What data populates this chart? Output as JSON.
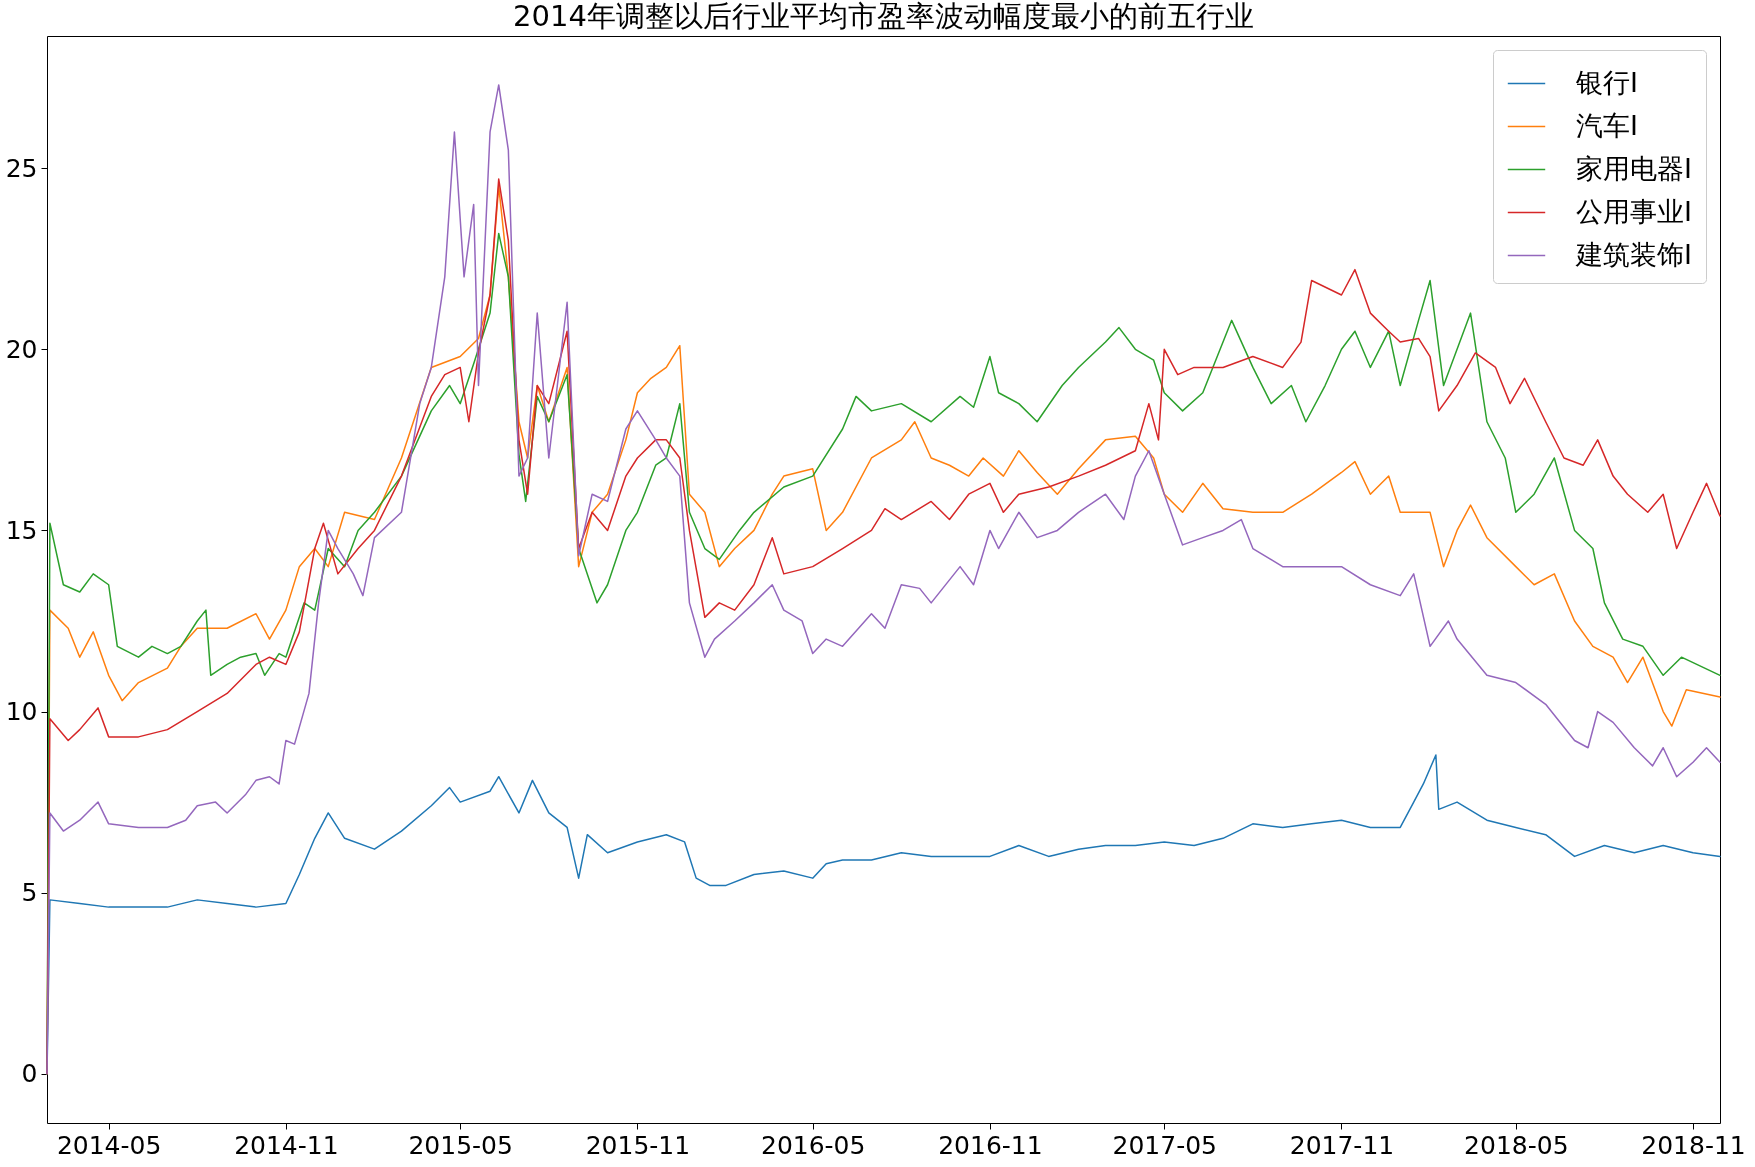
{
  "chart_data": {
    "type": "line",
    "title": "2014年调整以后行业平均市盈率波动幅度最小的前五行业",
    "xlim": [
      "2014-02-26",
      "2018-11-29"
    ],
    "xticks": [
      "2014-05",
      "2014-11",
      "2015-05",
      "2015-11",
      "2016-05",
      "2016-11",
      "2017-05",
      "2017-11",
      "2018-05",
      "2018-11"
    ],
    "ylim": [
      -1.36,
      28.65
    ],
    "yticks": [
      0,
      5,
      10,
      15,
      20,
      25
    ],
    "grid": false,
    "legend": "top right",
    "line_style": "solid",
    "marker": "none",
    "series": [
      {
        "name": "银行I",
        "color": "#1f77b4",
        "x": [
          "2014-02-26",
          "2014-03-01",
          "2014-04-01",
          "2014-05-01",
          "2014-06-01",
          "2014-07-01",
          "2014-08-01",
          "2014-09-01",
          "2014-10-01",
          "2014-11-01",
          "2014-11-15",
          "2014-12-01",
          "2014-12-15",
          "2015-01-01",
          "2015-02-01",
          "2015-03-01",
          "2015-04-01",
          "2015-04-20",
          "2015-05-01",
          "2015-06-01",
          "2015-06-10",
          "2015-07-01",
          "2015-07-15",
          "2015-08-01",
          "2015-08-20",
          "2015-09-01",
          "2015-09-10",
          "2015-10-01",
          "2015-11-01",
          "2015-12-01",
          "2015-12-20",
          "2016-01-01",
          "2016-01-15",
          "2016-02-01",
          "2016-03-01",
          "2016-04-01",
          "2016-05-01",
          "2016-05-15",
          "2016-06-01",
          "2016-07-01",
          "2016-08-01",
          "2016-09-01",
          "2016-10-01",
          "2016-11-01",
          "2016-12-01",
          "2017-01-01",
          "2017-02-01",
          "2017-03-01",
          "2017-04-01",
          "2017-05-01",
          "2017-06-01",
          "2017-07-01",
          "2017-08-01",
          "2017-09-01",
          "2017-10-01",
          "2017-11-01",
          "2017-12-01",
          "2018-01-01",
          "2018-01-15",
          "2018-01-25",
          "2018-02-07",
          "2018-02-10",
          "2018-03-01",
          "2018-04-01",
          "2018-05-01",
          "2018-06-01",
          "2018-07-01",
          "2018-08-01",
          "2018-09-01",
          "2018-10-01",
          "2018-11-01",
          "2018-11-29"
        ],
        "values": [
          0,
          4.8,
          4.7,
          4.6,
          4.6,
          4.6,
          4.8,
          4.7,
          4.6,
          4.7,
          5.5,
          6.5,
          7.2,
          6.5,
          6.2,
          6.7,
          7.4,
          7.9,
          7.5,
          7.8,
          8.2,
          7.2,
          8.1,
          7.2,
          6.8,
          5.4,
          6.6,
          6.1,
          6.4,
          6.6,
          6.4,
          5.4,
          5.2,
          5.2,
          5.5,
          5.6,
          5.4,
          5.8,
          5.9,
          5.9,
          6.1,
          6.0,
          6.0,
          6.0,
          6.3,
          6.0,
          6.2,
          6.3,
          6.3,
          6.4,
          6.3,
          6.5,
          6.9,
          6.8,
          6.9,
          7.0,
          6.8,
          6.8,
          7.5,
          8.0,
          8.8,
          7.3,
          7.5,
          7.0,
          6.8,
          6.6,
          6.0,
          6.3,
          6.1,
          6.3,
          6.1,
          6.0
        ]
      },
      {
        "name": "汽车I",
        "color": "#ff7f0e",
        "x": [
          "2014-02-26",
          "2014-03-01",
          "2014-03-20",
          "2014-04-01",
          "2014-04-15",
          "2014-05-01",
          "2014-05-15",
          "2014-06-01",
          "2014-07-01",
          "2014-07-15",
          "2014-08-01",
          "2014-09-01",
          "2014-10-01",
          "2014-10-15",
          "2014-11-01",
          "2014-11-15",
          "2014-12-01",
          "2014-12-15",
          "2015-01-01",
          "2015-02-01",
          "2015-03-01",
          "2015-04-01",
          "2015-05-01",
          "2015-05-20",
          "2015-06-01",
          "2015-06-10",
          "2015-06-20",
          "2015-07-01",
          "2015-07-10",
          "2015-07-20",
          "2015-08-01",
          "2015-08-20",
          "2015-09-01",
          "2015-09-15",
          "2015-10-01",
          "2015-10-20",
          "2015-11-01",
          "2015-11-15",
          "2015-12-01",
          "2015-12-15",
          "2015-12-25",
          "2016-01-10",
          "2016-01-25",
          "2016-02-10",
          "2016-03-01",
          "2016-03-20",
          "2016-04-01",
          "2016-05-01",
          "2016-05-15",
          "2016-06-01",
          "2016-07-01",
          "2016-08-01",
          "2016-08-15",
          "2016-09-01",
          "2016-09-20",
          "2016-10-10",
          "2016-10-25",
          "2016-11-15",
          "2016-12-01",
          "2016-12-20",
          "2017-01-10",
          "2017-02-01",
          "2017-03-01",
          "2017-04-01",
          "2017-04-20",
          "2017-05-01",
          "2017-05-20",
          "2017-06-10",
          "2017-07-01",
          "2017-08-01",
          "2017-09-01",
          "2017-10-01",
          "2017-11-01",
          "2017-11-15",
          "2017-12-01",
          "2017-12-20",
          "2018-01-01",
          "2018-02-01",
          "2018-02-15",
          "2018-03-01",
          "2018-03-15",
          "2018-04-01",
          "2018-05-01",
          "2018-05-20",
          "2018-06-10",
          "2018-07-01",
          "2018-07-20",
          "2018-08-10",
          "2018-08-25",
          "2018-09-10",
          "2018-10-01",
          "2018-10-10",
          "2018-10-25",
          "2018-11-29"
        ],
        "values": [
          0,
          12.8,
          12.3,
          11.5,
          12.2,
          11.0,
          10.3,
          10.8,
          11.2,
          11.8,
          12.3,
          12.3,
          12.7,
          12.0,
          12.8,
          14.0,
          14.5,
          14.0,
          15.5,
          15.3,
          17.0,
          19.5,
          19.8,
          20.3,
          21.5,
          24.5,
          22.0,
          18.0,
          17.0,
          19.0,
          18.0,
          19.5,
          14.0,
          15.5,
          16.0,
          17.5,
          18.8,
          19.2,
          19.5,
          20.1,
          16.0,
          15.5,
          14.0,
          14.5,
          15.0,
          16.0,
          16.5,
          16.7,
          15.0,
          15.5,
          17.0,
          17.5,
          18.0,
          17.0,
          16.8,
          16.5,
          17.0,
          16.5,
          17.2,
          16.6,
          16.0,
          16.7,
          17.5,
          17.6,
          17.0,
          16.0,
          15.5,
          16.3,
          15.6,
          15.5,
          15.5,
          16.0,
          16.6,
          16.9,
          16.0,
          16.5,
          15.5,
          15.5,
          14.0,
          15.0,
          15.7,
          14.8,
          14.0,
          13.5,
          13.8,
          12.5,
          11.8,
          11.5,
          10.8,
          11.5,
          10.0,
          9.6,
          10.6,
          10.4
        ]
      },
      {
        "name": "家用电器I",
        "color": "#2ca02c",
        "x": [
          "2014-02-26",
          "2014-03-01",
          "2014-03-15",
          "2014-04-01",
          "2014-04-15",
          "2014-05-01",
          "2014-05-10",
          "2014-06-01",
          "2014-06-15",
          "2014-07-01",
          "2014-07-15",
          "2014-08-01",
          "2014-08-10",
          "2014-08-15",
          "2014-09-01",
          "2014-09-15",
          "2014-10-01",
          "2014-10-10",
          "2014-10-25",
          "2014-11-01",
          "2014-11-20",
          "2014-12-01",
          "2014-12-15",
          "2015-01-01",
          "2015-01-15",
          "2015-02-01",
          "2015-03-01",
          "2015-04-01",
          "2015-04-20",
          "2015-05-01",
          "2015-05-15",
          "2015-06-01",
          "2015-06-10",
          "2015-06-20",
          "2015-07-01",
          "2015-07-08",
          "2015-07-20",
          "2015-08-01",
          "2015-08-20",
          "2015-09-01",
          "2015-09-20",
          "2015-10-01",
          "2015-10-20",
          "2015-11-01",
          "2015-11-20",
          "2015-12-01",
          "2015-12-15",
          "2015-12-25",
          "2016-01-10",
          "2016-01-25",
          "2016-02-15",
          "2016-03-01",
          "2016-04-01",
          "2016-05-01",
          "2016-06-01",
          "2016-06-15",
          "2016-07-01",
          "2016-08-01",
          "2016-09-01",
          "2016-10-01",
          "2016-10-15",
          "2016-11-01",
          "2016-11-10",
          "2016-12-01",
          "2016-12-20",
          "2017-01-15",
          "2017-02-01",
          "2017-03-01",
          "2017-03-15",
          "2017-04-01",
          "2017-04-20",
          "2017-05-01",
          "2017-05-20",
          "2017-06-10",
          "2017-06-25",
          "2017-07-10",
          "2017-08-01",
          "2017-08-20",
          "2017-09-10",
          "2017-09-25",
          "2017-10-15",
          "2017-11-01",
          "2017-11-15",
          "2017-12-01",
          "2017-12-20",
          "2018-01-01",
          "2018-01-20",
          "2018-02-01",
          "2018-02-15",
          "2018-03-01",
          "2018-03-15",
          "2018-04-01",
          "2018-04-20",
          "2018-05-01",
          "2018-05-20",
          "2018-06-10",
          "2018-07-01",
          "2018-07-20",
          "2018-08-01",
          "2018-08-20",
          "2018-09-10",
          "2018-10-01",
          "2018-10-20",
          "2018-11-29"
        ],
        "values": [
          0,
          15.2,
          13.5,
          13.3,
          13.8,
          13.5,
          11.8,
          11.5,
          11.8,
          11.6,
          11.8,
          12.5,
          12.8,
          11.0,
          11.3,
          11.5,
          11.6,
          11.0,
          11.6,
          11.5,
          13.0,
          12.8,
          14.5,
          14.0,
          15.0,
          15.5,
          16.5,
          18.3,
          19.0,
          18.5,
          19.6,
          21.0,
          23.2,
          22.0,
          17.1,
          15.8,
          18.7,
          18.0,
          19.3,
          14.5,
          13.0,
          13.5,
          15.0,
          15.5,
          16.8,
          17.0,
          18.5,
          15.5,
          14.5,
          14.2,
          15.0,
          15.5,
          16.2,
          16.5,
          17.8,
          18.7,
          18.3,
          18.5,
          18.0,
          18.7,
          18.4,
          19.8,
          18.8,
          18.5,
          18.0,
          19.0,
          19.5,
          20.2,
          20.6,
          20.0,
          19.7,
          18.8,
          18.3,
          18.8,
          19.8,
          20.8,
          19.5,
          18.5,
          19.0,
          18.0,
          19.0,
          20.0,
          20.5,
          19.5,
          20.5,
          19.0,
          20.8,
          21.9,
          19.0,
          20.0,
          21.0,
          18.0,
          17.0,
          15.5,
          16.0,
          17.0,
          15.0,
          14.5,
          13.0,
          12.0,
          11.8,
          11.0,
          11.5,
          11.0
        ]
      },
      {
        "name": "公用事业I",
        "color": "#d62728",
        "x": [
          "2014-02-26",
          "2014-03-01",
          "2014-03-20",
          "2014-04-01",
          "2014-04-20",
          "2014-05-01",
          "2014-06-01",
          "2014-07-01",
          "2014-08-01",
          "2014-09-01",
          "2014-10-01",
          "2014-10-15",
          "2014-11-01",
          "2014-11-15",
          "2014-12-01",
          "2014-12-10",
          "2014-12-25",
          "2015-01-15",
          "2015-02-01",
          "2015-03-01",
          "2015-04-01",
          "2015-04-15",
          "2015-05-01",
          "2015-05-10",
          "2015-05-20",
          "2015-06-01",
          "2015-06-10",
          "2015-06-20",
          "2015-07-01",
          "2015-07-10",
          "2015-07-20",
          "2015-08-01",
          "2015-08-20",
          "2015-09-01",
          "2015-09-15",
          "2015-10-01",
          "2015-10-20",
          "2015-11-01",
          "2015-11-20",
          "2015-12-01",
          "2015-12-15",
          "2015-12-25",
          "2016-01-10",
          "2016-01-25",
          "2016-02-10",
          "2016-03-01",
          "2016-03-20",
          "2016-04-01",
          "2016-05-01",
          "2016-06-01",
          "2016-07-01",
          "2016-07-15",
          "2016-08-01",
          "2016-09-01",
          "2016-09-20",
          "2016-10-10",
          "2016-11-01",
          "2016-11-15",
          "2016-12-01",
          "2017-01-01",
          "2017-02-01",
          "2017-03-01",
          "2017-04-01",
          "2017-04-15",
          "2017-04-25",
          "2017-05-01",
          "2017-05-15",
          "2017-06-01",
          "2017-07-01",
          "2017-08-01",
          "2017-09-01",
          "2017-09-20",
          "2017-10-01",
          "2017-11-01",
          "2017-11-15",
          "2017-12-01",
          "2017-12-20",
          "2018-01-01",
          "2018-01-20",
          "2018-02-01",
          "2018-02-10",
          "2018-03-01",
          "2018-03-20",
          "2018-04-10",
          "2018-04-25",
          "2018-05-10",
          "2018-06-01",
          "2018-06-20",
          "2018-07-10",
          "2018-07-25",
          "2018-08-10",
          "2018-08-25",
          "2018-09-15",
          "2018-10-01",
          "2018-10-15",
          "2018-11-01",
          "2018-11-15",
          "2018-11-29"
        ],
        "values": [
          0,
          9.8,
          9.2,
          9.5,
          10.1,
          9.3,
          9.3,
          9.5,
          10.0,
          10.5,
          11.3,
          11.5,
          11.3,
          12.2,
          14.5,
          15.2,
          13.8,
          14.5,
          15.0,
          16.5,
          18.7,
          19.3,
          19.5,
          18.0,
          19.9,
          21.5,
          24.7,
          23.0,
          17.5,
          16.0,
          19.0,
          18.5,
          20.5,
          14.5,
          15.5,
          15.0,
          16.5,
          17.0,
          17.5,
          17.5,
          17.0,
          15.0,
          12.6,
          13.0,
          12.8,
          13.5,
          14.8,
          13.8,
          14.0,
          14.5,
          15.0,
          15.6,
          15.3,
          15.8,
          15.3,
          16.0,
          16.3,
          15.5,
          16.0,
          16.2,
          16.5,
          16.8,
          17.2,
          18.5,
          17.5,
          20.0,
          19.3,
          19.5,
          19.5,
          19.8,
          19.5,
          20.2,
          21.9,
          21.5,
          22.2,
          21.0,
          20.5,
          20.2,
          20.3,
          19.8,
          18.3,
          19.0,
          19.9,
          19.5,
          18.5,
          19.2,
          18.0,
          17.0,
          16.8,
          17.5,
          16.5,
          16.0,
          15.5,
          16.0,
          14.5,
          15.5,
          16.3,
          15.4
        ]
      },
      {
        "name": "建筑装饰I",
        "color": "#9467bd",
        "x": [
          "2014-02-26",
          "2014-03-01",
          "2014-03-15",
          "2014-04-01",
          "2014-04-20",
          "2014-05-01",
          "2014-06-01",
          "2014-07-01",
          "2014-07-20",
          "2014-08-01",
          "2014-08-20",
          "2014-09-01",
          "2014-09-20",
          "2014-10-01",
          "2014-10-15",
          "2014-10-25",
          "2014-11-01",
          "2014-11-10",
          "2014-11-25",
          "2014-12-05",
          "2014-12-15",
          "2014-12-25",
          "2015-01-10",
          "2015-01-20",
          "2015-02-01",
          "2015-03-01",
          "2015-03-20",
          "2015-04-01",
          "2015-04-15",
          "2015-04-25",
          "2015-05-05",
          "2015-05-15",
          "2015-05-20",
          "2015-06-01",
          "2015-06-10",
          "2015-06-20",
          "2015-07-01",
          "2015-07-10",
          "2015-07-20",
          "2015-08-01",
          "2015-08-20",
          "2015-09-01",
          "2015-09-15",
          "2015-10-01",
          "2015-10-20",
          "2015-11-01",
          "2015-11-20",
          "2015-12-01",
          "2015-12-15",
          "2015-12-25",
          "2016-01-10",
          "2016-01-20",
          "2016-02-10",
          "2016-03-01",
          "2016-03-20",
          "2016-04-01",
          "2016-04-20",
          "2016-05-01",
          "2016-05-15",
          "2016-06-01",
          "2016-07-01",
          "2016-07-15",
          "2016-08-01",
          "2016-08-20",
          "2016-09-01",
          "2016-10-01",
          "2016-10-15",
          "2016-11-01",
          "2016-11-10",
          "2016-12-01",
          "2016-12-20",
          "2017-01-10",
          "2017-02-01",
          "2017-03-01",
          "2017-03-20",
          "2017-04-01",
          "2017-04-15",
          "2017-05-01",
          "2017-05-20",
          "2017-06-10",
          "2017-07-01",
          "2017-07-20",
          "2017-08-01",
          "2017-09-01",
          "2017-10-01",
          "2017-11-01",
          "2017-12-01",
          "2018-01-01",
          "2018-01-15",
          "2018-02-01",
          "2018-02-20",
          "2018-03-01",
          "2018-04-01",
          "2018-05-01",
          "2018-06-01",
          "2018-07-01",
          "2018-07-15",
          "2018-07-25",
          "2018-08-10",
          "2018-09-01",
          "2018-09-20",
          "2018-10-01",
          "2018-10-15",
          "2018-11-01",
          "2018-11-15",
          "2018-11-29"
        ],
        "values": [
          0,
          7.2,
          6.7,
          7.0,
          7.5,
          6.9,
          6.8,
          6.8,
          7.0,
          7.4,
          7.5,
          7.2,
          7.7,
          8.1,
          8.2,
          8.0,
          9.2,
          9.1,
          10.5,
          13.0,
          15.0,
          14.5,
          13.8,
          13.2,
          14.8,
          15.5,
          18.5,
          19.5,
          22.0,
          26.0,
          22.0,
          24.0,
          19.0,
          26.0,
          27.3,
          25.5,
          16.5,
          17.0,
          21.0,
          17.0,
          21.3,
          14.3,
          16.0,
          15.8,
          17.8,
          18.3,
          17.5,
          17.0,
          16.5,
          13.0,
          11.5,
          12.0,
          12.5,
          13.0,
          13.5,
          12.8,
          12.5,
          11.6,
          12.0,
          11.8,
          12.7,
          12.3,
          13.5,
          13.4,
          13.0,
          14.0,
          13.5,
          15.0,
          14.5,
          15.5,
          14.8,
          15.0,
          15.5,
          16.0,
          15.3,
          16.5,
          17.2,
          16.0,
          14.6,
          14.8,
          15.0,
          15.3,
          14.5,
          14.0,
          14.0,
          14.0,
          13.5,
          13.2,
          13.8,
          11.8,
          12.5,
          12.0,
          11.0,
          10.8,
          10.2,
          9.2,
          9.0,
          10.0,
          9.7,
          9.0,
          8.5,
          9.0,
          8.2,
          8.6,
          9.0,
          8.6
        ]
      }
    ]
  }
}
